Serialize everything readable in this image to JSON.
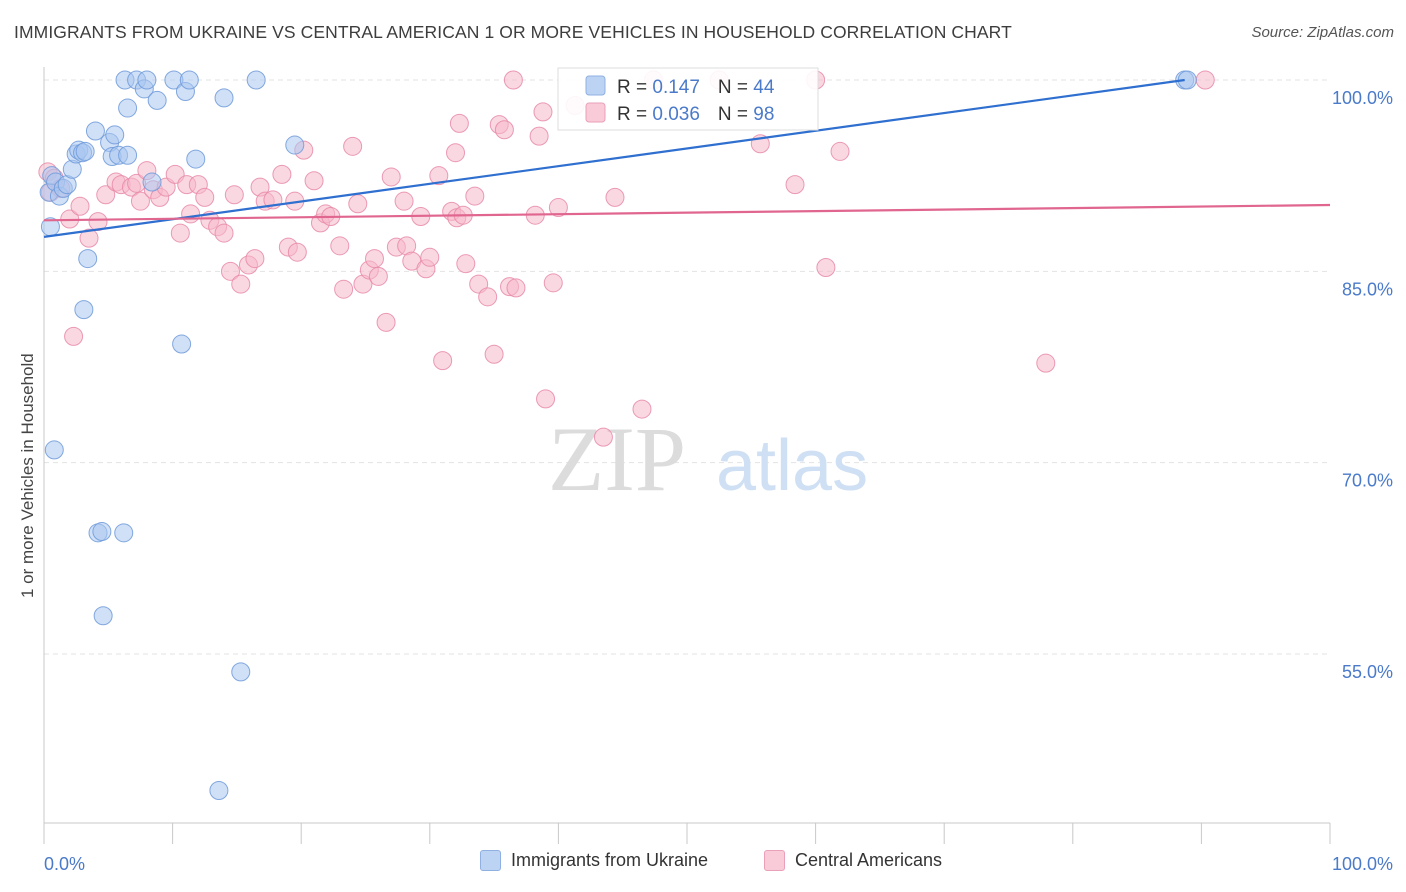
{
  "title": "IMMIGRANTS FROM UKRAINE VS CENTRAL AMERICAN 1 OR MORE VEHICLES IN HOUSEHOLD CORRELATION CHART",
  "source": "Source: ZipAtlas.com",
  "watermark": {
    "zip": "ZIP",
    "atlas": "atlas"
  },
  "colors": {
    "blue_fill": "#a9c7f0",
    "blue_stroke": "#6f9ad9",
    "blue_line": "#2f6fcf",
    "pink_fill": "#f6b8cb",
    "pink_stroke": "#e88aa8",
    "pink_line": "#e0668f",
    "tick_label": "#4a7ac9",
    "grid": "#e3e3e3"
  },
  "chart_data": {
    "type": "scatter",
    "xlabel": "",
    "ylabel": "1 or more Vehicles in Household",
    "xlim": [
      0,
      100
    ],
    "ylim": [
      42,
      103
    ],
    "x_tick_labels": [
      "0.0%",
      "100.0%"
    ],
    "y_ticks": [
      55,
      70,
      85,
      100
    ],
    "y_tick_labels": [
      "55.0%",
      "70.0%",
      "85.0%",
      "100.0%"
    ],
    "grid": true,
    "legend_position": "top-center",
    "legend": [
      {
        "r_label": "R = ",
        "r_value": "0.147",
        "n_label": "N = ",
        "n_value": "44"
      },
      {
        "r_label": "R = ",
        "r_value": "0.036",
        "n_label": "N = ",
        "n_value": "98"
      }
    ],
    "series": [
      {
        "name": "Immigrants from Ukraine",
        "color": "blue",
        "trend": {
          "x": [
            0,
            88.7
          ],
          "y": [
            87.7,
            100.0
          ]
        },
        "points": [
          [
            0.4,
            91.2
          ],
          [
            0.5,
            88.5
          ],
          [
            0.6,
            92.5
          ],
          [
            0.8,
            71.0
          ],
          [
            0.9,
            92.0
          ],
          [
            1.2,
            90.9
          ],
          [
            1.5,
            91.5
          ],
          [
            1.8,
            91.8
          ],
          [
            2.2,
            93.0
          ],
          [
            2.5,
            94.2
          ],
          [
            2.7,
            94.5
          ],
          [
            3.0,
            94.3
          ],
          [
            3.2,
            94.4
          ],
          [
            3.4,
            86.0
          ],
          [
            3.1,
            82.0
          ],
          [
            4.0,
            96.0
          ],
          [
            4.2,
            64.5
          ],
          [
            4.5,
            64.6
          ],
          [
            4.6,
            58.0
          ],
          [
            5.1,
            95.1
          ],
          [
            5.3,
            94.0
          ],
          [
            5.5,
            95.7
          ],
          [
            5.8,
            94.1
          ],
          [
            6.2,
            64.5
          ],
          [
            6.5,
            94.1
          ],
          [
            6.5,
            97.8
          ],
          [
            6.3,
            100.0
          ],
          [
            7.2,
            100.0
          ],
          [
            7.8,
            99.3
          ],
          [
            8.0,
            100.0
          ],
          [
            8.8,
            98.4
          ],
          [
            8.4,
            92.0
          ],
          [
            10.1,
            100.0
          ],
          [
            10.7,
            79.3
          ],
          [
            11.0,
            99.1
          ],
          [
            11.3,
            100.0
          ],
          [
            11.8,
            93.8
          ],
          [
            14.0,
            98.6
          ],
          [
            15.3,
            53.6
          ],
          [
            13.6,
            44.3
          ],
          [
            16.5,
            100.0
          ],
          [
            19.5,
            94.9
          ],
          [
            88.7,
            100.0
          ],
          [
            88.9,
            100.0
          ]
        ]
      },
      {
        "name": "Central Americans",
        "color": "pink",
        "trend": {
          "x": [
            0,
            100
          ],
          "y": [
            89.0,
            90.2
          ]
        },
        "points": [
          [
            0.3,
            92.8
          ],
          [
            0.5,
            91.2
          ],
          [
            0.8,
            92.3
          ],
          [
            1.3,
            91.5
          ],
          [
            2.0,
            89.1
          ],
          [
            2.3,
            79.9
          ],
          [
            2.8,
            90.1
          ],
          [
            3.5,
            87.6
          ],
          [
            4.2,
            88.9
          ],
          [
            4.8,
            91.0
          ],
          [
            5.6,
            92.0
          ],
          [
            6.0,
            91.8
          ],
          [
            6.8,
            91.6
          ],
          [
            7.2,
            91.9
          ],
          [
            7.5,
            90.5
          ],
          [
            8.0,
            92.9
          ],
          [
            8.5,
            91.4
          ],
          [
            9.0,
            90.8
          ],
          [
            9.5,
            91.6
          ],
          [
            10.2,
            92.6
          ],
          [
            10.6,
            88.0
          ],
          [
            11.1,
            91.8
          ],
          [
            11.4,
            89.5
          ],
          [
            12.0,
            91.8
          ],
          [
            12.5,
            90.8
          ],
          [
            12.9,
            89.0
          ],
          [
            13.5,
            88.5
          ],
          [
            14.0,
            88.0
          ],
          [
            14.5,
            85.0
          ],
          [
            14.8,
            91.0
          ],
          [
            15.3,
            84.0
          ],
          [
            15.9,
            85.5
          ],
          [
            16.4,
            86.0
          ],
          [
            16.8,
            91.6
          ],
          [
            17.2,
            90.5
          ],
          [
            17.8,
            90.6
          ],
          [
            18.5,
            92.6
          ],
          [
            19.0,
            86.9
          ],
          [
            19.5,
            90.5
          ],
          [
            19.7,
            86.5
          ],
          [
            20.2,
            94.5
          ],
          [
            21.0,
            92.1
          ],
          [
            21.5,
            88.8
          ],
          [
            21.9,
            89.5
          ],
          [
            22.3,
            89.3
          ],
          [
            23.0,
            87.0
          ],
          [
            23.3,
            83.6
          ],
          [
            24.0,
            94.8
          ],
          [
            24.4,
            90.3
          ],
          [
            24.8,
            84.0
          ],
          [
            25.3,
            85.1
          ],
          [
            25.7,
            86.0
          ],
          [
            26.0,
            84.6
          ],
          [
            26.6,
            81.0
          ],
          [
            27.0,
            92.4
          ],
          [
            27.4,
            86.9
          ],
          [
            28.0,
            90.5
          ],
          [
            28.2,
            87.0
          ],
          [
            28.6,
            85.8
          ],
          [
            29.3,
            89.3
          ],
          [
            29.7,
            85.2
          ],
          [
            30.0,
            86.1
          ],
          [
            30.7,
            92.5
          ],
          [
            31.0,
            78.0
          ],
          [
            31.7,
            89.7
          ],
          [
            32.1,
            89.2
          ],
          [
            32.3,
            96.6
          ],
          [
            32.6,
            89.4
          ],
          [
            32.8,
            85.6
          ],
          [
            33.8,
            84.0
          ],
          [
            33.5,
            90.9
          ],
          [
            34.5,
            83.0
          ],
          [
            35.0,
            78.5
          ],
          [
            35.4,
            96.5
          ],
          [
            35.8,
            96.1
          ],
          [
            36.2,
            83.8
          ],
          [
            36.7,
            83.7
          ],
          [
            36.5,
            100.0
          ],
          [
            38.2,
            89.4
          ],
          [
            38.5,
            95.6
          ],
          [
            39.0,
            75.0
          ],
          [
            39.6,
            84.1
          ],
          [
            40.0,
            90.0
          ],
          [
            41.3,
            98.0
          ],
          [
            43.5,
            72.0
          ],
          [
            44.4,
            90.8
          ],
          [
            46.5,
            74.2
          ],
          [
            47.4,
            100.0
          ],
          [
            52.5,
            100.0
          ],
          [
            55.7,
            95.0
          ],
          [
            58.4,
            91.8
          ],
          [
            60.0,
            100.0
          ],
          [
            60.8,
            85.3
          ],
          [
            61.9,
            94.4
          ],
          [
            77.9,
            77.8
          ],
          [
            90.3,
            100.0
          ],
          [
            32.0,
            94.3
          ],
          [
            38.8,
            97.5
          ]
        ]
      }
    ]
  },
  "bottom_legend": [
    {
      "label": "Immigrants from Ukraine"
    },
    {
      "label": "Central Americans"
    }
  ]
}
